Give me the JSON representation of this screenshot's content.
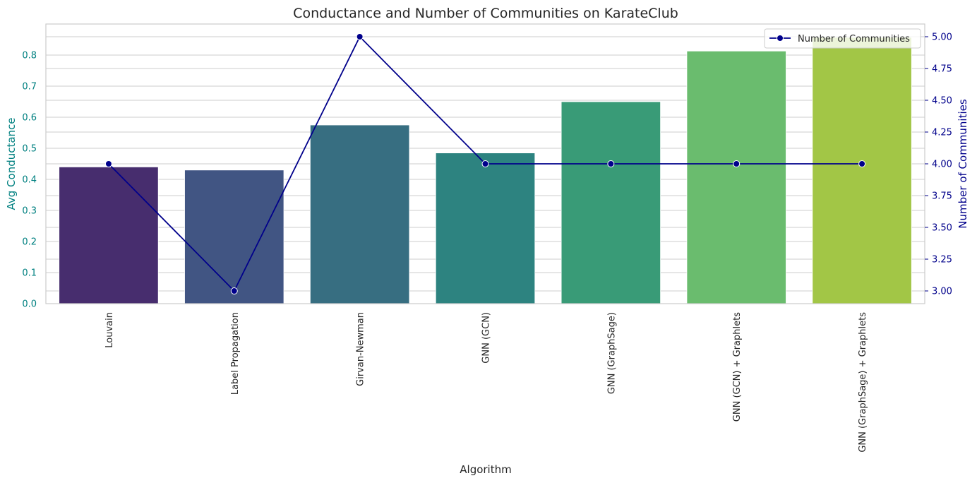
{
  "chart_data": {
    "type": "bar",
    "title": "Conductance and Number of Communities on KarateClub",
    "xlabel": "Algorithm",
    "categories": [
      "Louvain",
      "Label Propagation",
      "Girvan-Newman",
      "GNN (GCN)",
      "GNN (GraphSage)",
      "GNN (GCN) + Graphlets",
      "GNN (GraphSage) + Graphlets"
    ],
    "bar_series": {
      "ylabel": "Avg Conductance",
      "values": [
        0.44,
        0.43,
        0.575,
        0.485,
        0.65,
        0.813,
        0.857
      ],
      "colors": [
        "#472d6e",
        "#415583",
        "#376e81",
        "#2d8380",
        "#399b77",
        "#6abc6e",
        "#a2c646"
      ],
      "ylim": [
        0,
        0.9
      ],
      "ticks": [
        0.0,
        0.1,
        0.2,
        0.3,
        0.4,
        0.5,
        0.6,
        0.7,
        0.8
      ],
      "tick_labels": [
        "0.0",
        "0.1",
        "0.2",
        "0.3",
        "0.4",
        "0.5",
        "0.6",
        "0.7",
        "0.8"
      ],
      "axis_color": "#008080"
    },
    "line_series": {
      "name": "Number of Communities",
      "ylabel": "Number of Communities",
      "values": [
        4,
        3,
        5,
        4,
        4,
        4,
        4
      ],
      "color": "#00008b",
      "ylim": [
        2.9,
        5.1
      ],
      "ticks": [
        3.0,
        3.25,
        3.5,
        3.75,
        4.0,
        4.25,
        4.5,
        4.75,
        5.0
      ],
      "tick_labels": [
        "3.00",
        "3.25",
        "3.50",
        "3.75",
        "4.00",
        "4.25",
        "4.50",
        "4.75",
        "5.00"
      ]
    },
    "grid": true,
    "legend_position": "top-right"
  }
}
